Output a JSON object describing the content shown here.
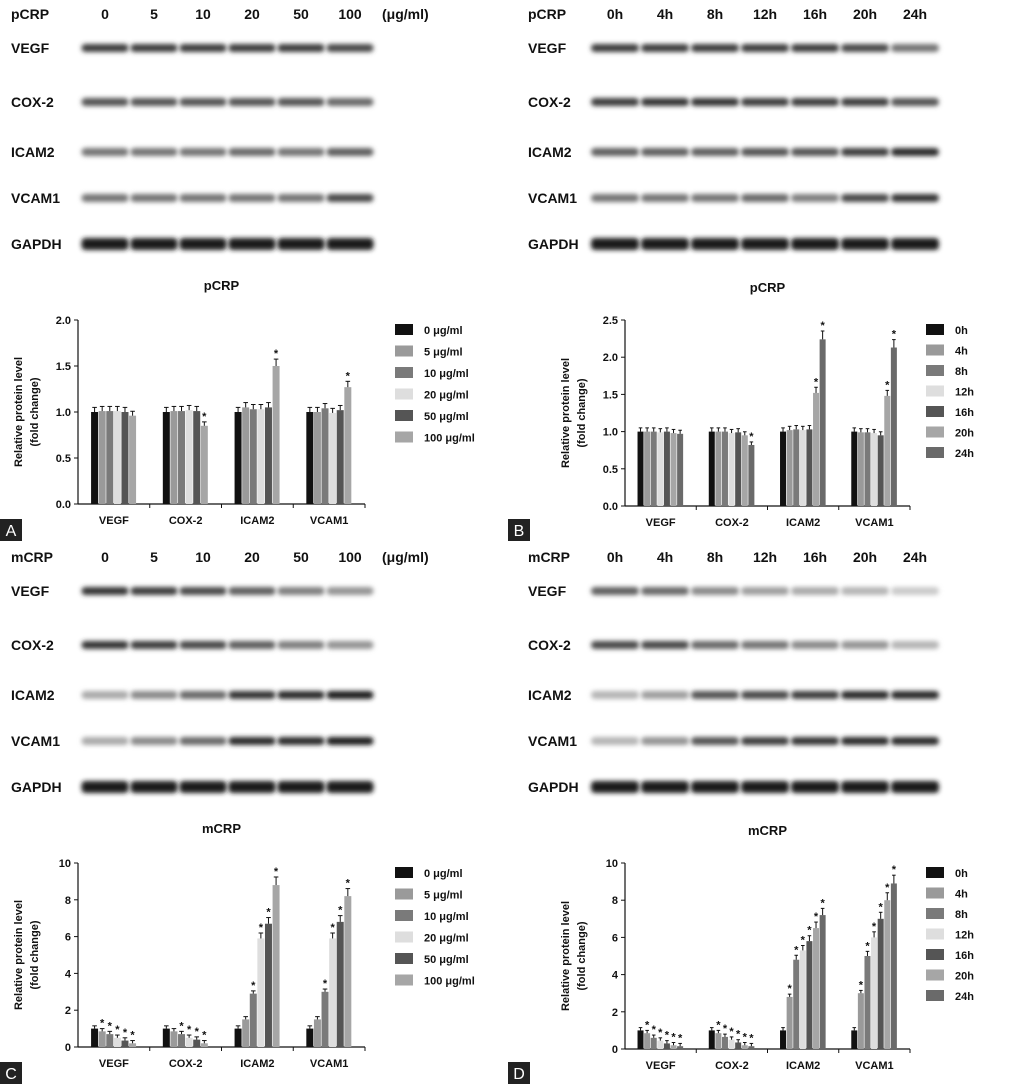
{
  "panels": [
    {
      "letter": "A",
      "blot": {
        "treatment": "pCRP",
        "columns": [
          "0",
          "5",
          "10",
          "20",
          "50",
          "100"
        ],
        "unit": "(μg/ml)",
        "proteins": [
          "VEGF",
          "COX-2",
          "ICAM2",
          "VCAM1",
          "GAPDH"
        ]
      },
      "chart_data": {
        "type": "bar",
        "title": "pCRP",
        "ylabel": "Relative protein level (fold change)",
        "ylabel_lines": [
          "Relative protein level",
          "(fold change)"
        ],
        "ylim": [
          0,
          2.0
        ],
        "yticks": [
          "0.0",
          "0.5",
          "1.0",
          "1.5",
          "2.0"
        ],
        "categories": [
          "VEGF",
          "COX-2",
          "ICAM2",
          "VCAM1"
        ],
        "series": [
          {
            "name": "0 μg/ml",
            "values": [
              1.0,
              1.0,
              1.0,
              1.0
            ],
            "color": "#111111"
          },
          {
            "name": "5 μg/ml",
            "values": [
              1.01,
              1.01,
              1.05,
              1.0
            ],
            "color": "#9a9a9a"
          },
          {
            "name": "10 μg/ml",
            "values": [
              1.01,
              1.01,
              1.03,
              1.04
            ],
            "color": "#7a7a7a"
          },
          {
            "name": "20 μg/ml",
            "values": [
              1.01,
              1.02,
              1.03,
              0.99
            ],
            "color": "#dedede"
          },
          {
            "name": "50 μg/ml",
            "values": [
              1.0,
              1.01,
              1.05,
              1.02
            ],
            "color": "#555555"
          },
          {
            "name": "100 μg/ml",
            "values": [
              0.96,
              0.85,
              1.5,
              1.27
            ],
            "color": "#a6a6a6"
          }
        ],
        "stars": [
          [
            0,
            0,
            0,
            0,
            0,
            0
          ],
          [
            0,
            0,
            0,
            0,
            0,
            1
          ],
          [
            0,
            0,
            0,
            0,
            0,
            1
          ],
          [
            0,
            0,
            0,
            0,
            0,
            1
          ]
        ]
      }
    },
    {
      "letter": "B",
      "blot": {
        "treatment": "pCRP",
        "columns": [
          "0h",
          "4h",
          "8h",
          "12h",
          "16h",
          "20h",
          "24h"
        ],
        "unit": "",
        "proteins": [
          "VEGF",
          "COX-2",
          "ICAM2",
          "VCAM1",
          "GAPDH"
        ]
      },
      "chart_data": {
        "type": "bar",
        "title": "pCRP",
        "ylabel": "Relative protein level (fold change)",
        "ylabel_lines": [
          "Relative protein level",
          "(fold change)"
        ],
        "ylim": [
          0,
          2.5
        ],
        "yticks": [
          "0.0",
          "0.5",
          "1.0",
          "1.5",
          "2.0",
          "2.5"
        ],
        "categories": [
          "VEGF",
          "COX-2",
          "ICAM2",
          "VCAM1"
        ],
        "series": [
          {
            "name": "0h",
            "values": [
              1.0,
              1.0,
              1.0,
              1.0
            ],
            "color": "#111111"
          },
          {
            "name": "4h",
            "values": [
              1.0,
              1.0,
              1.02,
              0.99
            ],
            "color": "#9a9a9a"
          },
          {
            "name": "8h",
            "values": [
              1.0,
              1.0,
              1.03,
              0.99
            ],
            "color": "#7a7a7a"
          },
          {
            "name": "12h",
            "values": [
              0.99,
              0.98,
              1.02,
              0.98
            ],
            "color": "#dedede"
          },
          {
            "name": "16h",
            "values": [
              1.0,
              0.99,
              1.03,
              0.95
            ],
            "color": "#555555"
          },
          {
            "name": "20h",
            "values": [
              0.98,
              0.95,
              1.52,
              1.48
            ],
            "color": "#a6a6a6"
          },
          {
            "name": "24h",
            "values": [
              0.97,
              0.82,
              2.24,
              2.13
            ],
            "color": "#6a6a6a"
          }
        ],
        "stars": [
          [
            0,
            0,
            0,
            0,
            0,
            0,
            0
          ],
          [
            0,
            0,
            0,
            0,
            0,
            0,
            1
          ],
          [
            0,
            0,
            0,
            0,
            0,
            1,
            1
          ],
          [
            0,
            0,
            0,
            0,
            0,
            1,
            1
          ]
        ]
      }
    },
    {
      "letter": "C",
      "blot": {
        "treatment": "mCRP",
        "columns": [
          "0",
          "5",
          "10",
          "20",
          "50",
          "100"
        ],
        "unit": "(μg/ml)",
        "proteins": [
          "VEGF",
          "COX-2",
          "ICAM2",
          "VCAM1",
          "GAPDH"
        ]
      },
      "chart_data": {
        "type": "bar",
        "title": "mCRP",
        "ylabel": "Relative protein level (fold change)",
        "ylabel_lines": [
          "Relative protein level",
          "(fold change)"
        ],
        "ylim": [
          0,
          10
        ],
        "yticks": [
          "0",
          "2",
          "4",
          "6",
          "8",
          "10"
        ],
        "categories": [
          "VEGF",
          "COX-2",
          "ICAM2",
          "VCAM1"
        ],
        "series": [
          {
            "name": "0 μg/ml",
            "values": [
              1.0,
              1.0,
              1.0,
              1.0
            ],
            "color": "#111111"
          },
          {
            "name": "5 μg/ml",
            "values": [
              0.85,
              0.85,
              1.5,
              1.5
            ],
            "color": "#9a9a9a"
          },
          {
            "name": "10 μg/ml",
            "values": [
              0.7,
              0.7,
              2.9,
              3.0
            ],
            "color": "#7a7a7a"
          },
          {
            "name": "20 μg/ml",
            "values": [
              0.5,
              0.5,
              5.9,
              5.9
            ],
            "color": "#dedede"
          },
          {
            "name": "50 μg/ml",
            "values": [
              0.35,
              0.4,
              6.7,
              6.8
            ],
            "color": "#555555"
          },
          {
            "name": "100 μg/ml",
            "values": [
              0.2,
              0.2,
              8.8,
              8.2
            ],
            "color": "#a6a6a6"
          }
        ],
        "stars": [
          [
            0,
            1,
            1,
            1,
            1,
            1
          ],
          [
            0,
            0,
            1,
            1,
            1,
            1
          ],
          [
            0,
            0,
            1,
            1,
            1,
            1
          ],
          [
            0,
            0,
            1,
            1,
            1,
            1
          ]
        ]
      }
    },
    {
      "letter": "D",
      "blot": {
        "treatment": "mCRP",
        "columns": [
          "0h",
          "4h",
          "8h",
          "12h",
          "16h",
          "20h",
          "24h"
        ],
        "unit": "",
        "proteins": [
          "VEGF",
          "COX-2",
          "ICAM2",
          "VCAM1",
          "GAPDH"
        ]
      },
      "chart_data": {
        "type": "bar",
        "title": "mCRP",
        "ylabel": "Relative protein level (fold change)",
        "ylabel_lines": [
          "Relative protein level",
          "(fold change)"
        ],
        "ylim": [
          0,
          10
        ],
        "yticks": [
          "0",
          "2",
          "4",
          "6",
          "8",
          "10"
        ],
        "categories": [
          "VEGF",
          "COX-2",
          "ICAM2",
          "VCAM1"
        ],
        "series": [
          {
            "name": "0h",
            "values": [
              1.0,
              1.0,
              1.0,
              1.0
            ],
            "color": "#111111"
          },
          {
            "name": "4h",
            "values": [
              0.85,
              0.85,
              2.8,
              3.0
            ],
            "color": "#9a9a9a"
          },
          {
            "name": "8h",
            "values": [
              0.6,
              0.65,
              4.8,
              5.0
            ],
            "color": "#7a7a7a"
          },
          {
            "name": "12h",
            "values": [
              0.45,
              0.5,
              5.3,
              6.0
            ],
            "color": "#dedede"
          },
          {
            "name": "16h",
            "values": [
              0.3,
              0.35,
              5.8,
              7.0
            ],
            "color": "#555555"
          },
          {
            "name": "20h",
            "values": [
              0.2,
              0.2,
              6.5,
              8.0
            ],
            "color": "#a6a6a6"
          },
          {
            "name": "24h",
            "values": [
              0.15,
              0.15,
              7.2,
              8.9
            ],
            "color": "#6a6a6a"
          }
        ],
        "stars": [
          [
            0,
            1,
            1,
            1,
            1,
            1,
            1
          ],
          [
            0,
            1,
            1,
            1,
            1,
            1,
            1
          ],
          [
            0,
            1,
            1,
            1,
            1,
            1,
            1
          ],
          [
            0,
            1,
            1,
            1,
            1,
            1,
            1
          ]
        ]
      }
    }
  ]
}
